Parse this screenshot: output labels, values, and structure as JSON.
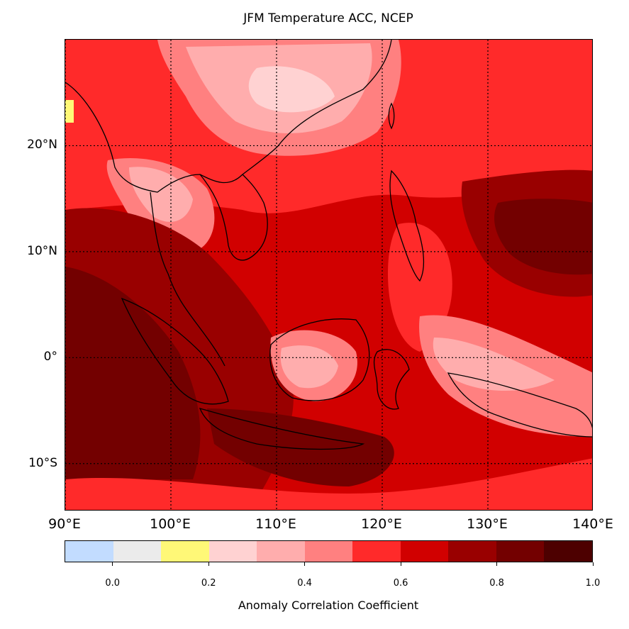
{
  "title": "JFM Temperature ACC, NCEP",
  "map": {
    "extent": {
      "lon": [
        90,
        140
      ],
      "lat": [
        -14.5,
        30
      ]
    },
    "lat_ticks": [
      {
        "value": 20,
        "label": "20°N"
      },
      {
        "value": 10,
        "label": "10°N"
      },
      {
        "value": 0,
        "label": "0°"
      },
      {
        "value": -10,
        "label": "10°S"
      }
    ],
    "lon_ticks": [
      {
        "value": 90,
        "label": "90°E"
      },
      {
        "value": 100,
        "label": "100°E"
      },
      {
        "value": 110,
        "label": "110°E"
      },
      {
        "value": 120,
        "label": "120°E"
      },
      {
        "value": 130,
        "label": "130°E"
      },
      {
        "value": 140,
        "label": "140°E"
      }
    ]
  },
  "colorbar": {
    "label": "Anomaly Correlation Coefficient",
    "colors": [
      "#c2dcff",
      "#ebebeb",
      "#fff877",
      "#ffd2d2",
      "#ffadad",
      "#ff8080",
      "#ff2a2a",
      "#d10000",
      "#990000",
      "#730000",
      "#4d0000"
    ],
    "range": [
      -0.1,
      1.0
    ],
    "ticks": [
      {
        "value": 0.0,
        "label": "0.0"
      },
      {
        "value": 0.2,
        "label": "0.2"
      },
      {
        "value": 0.4,
        "label": "0.4"
      },
      {
        "value": 0.6,
        "label": "0.6"
      },
      {
        "value": 0.8,
        "label": "0.8"
      },
      {
        "value": 1.0,
        "label": "1.0"
      }
    ]
  }
}
